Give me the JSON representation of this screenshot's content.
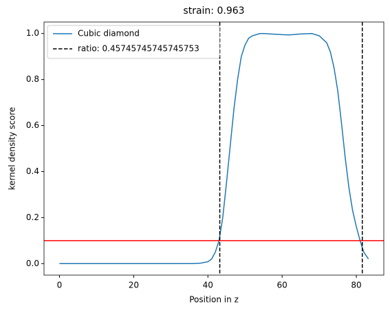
{
  "chart_data": {
    "type": "line",
    "title": "strain: 0.963",
    "x_label": "Position in z",
    "y_label": "kernel density score",
    "x": [
      0,
      10,
      20,
      30,
      36,
      38,
      40,
      41,
      42,
      43,
      44,
      45,
      46,
      47,
      48,
      49,
      50,
      51,
      52,
      54,
      55,
      58,
      60,
      62,
      65,
      68,
      70,
      71,
      72,
      73,
      74,
      75,
      76,
      77,
      78,
      79,
      80,
      81,
      82,
      83.25
    ],
    "series": [
      {
        "name": "Cubic diamond",
        "color": "#1f77b4",
        "values": [
          0,
          0,
          0,
          0,
          0,
          0.002,
          0.008,
          0.02,
          0.05,
          0.1,
          0.2,
          0.35,
          0.51,
          0.67,
          0.8,
          0.9,
          0.95,
          0.98,
          0.99,
          1.0,
          1.0,
          0.997,
          0.995,
          0.994,
          0.998,
          1.0,
          0.99,
          0.975,
          0.96,
          0.92,
          0.85,
          0.75,
          0.61,
          0.46,
          0.33,
          0.23,
          0.16,
          0.1,
          0.05,
          0.02
        ]
      }
    ],
    "vlines": {
      "name": "ratio: 0.45745745745745753",
      "color": "#000000",
      "values": [
        43.2,
        81.6
      ]
    },
    "hline": {
      "value": 0.1,
      "color": "#ff0000"
    },
    "xlim": [
      -4.16,
      87.4
    ],
    "ylim": [
      -0.05,
      1.05
    ],
    "xticks": [
      0,
      20,
      40,
      60,
      80
    ],
    "yticks": [
      {
        "value": 0,
        "label": "0.0"
      },
      {
        "value": 0.2,
        "label": "0.2"
      },
      {
        "value": 0.4,
        "label": "0.4"
      },
      {
        "value": 0.6,
        "label": "0.6"
      },
      {
        "value": 0.8,
        "label": "0.8"
      },
      {
        "value": 1,
        "label": "1.0"
      }
    ],
    "legend": "upper left"
  }
}
